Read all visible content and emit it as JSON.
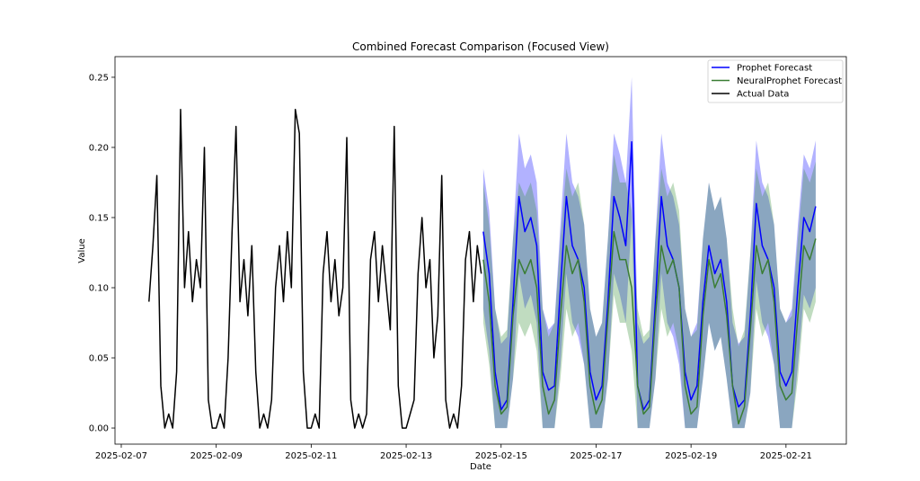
{
  "chart_data": {
    "type": "line",
    "title": "Combined Forecast Comparison (Focused View)",
    "xlabel": "Date",
    "ylabel": "Value",
    "xlim": [
      "2025-02-06 20:50",
      "2025-02-22 06:30"
    ],
    "ylim": [
      -0.0115,
      0.2647
    ],
    "grid": false,
    "legend_placement": "top-right",
    "x_ticks": [
      "2025-02-07",
      "2025-02-09",
      "2025-02-11",
      "2025-02-13",
      "2025-02-15",
      "2025-02-17",
      "2025-02-19",
      "2025-02-21"
    ],
    "y_ticks": [
      0.0,
      0.05,
      0.1,
      0.15,
      0.2,
      0.25
    ],
    "y_tick_labels": [
      "0.00",
      "0.05",
      "0.10",
      "0.15",
      "0.20",
      "0.25"
    ],
    "legend": [
      {
        "label": "Prophet Forecast",
        "color": "#0000ff"
      },
      {
        "label": "NeuralProphet Forecast",
        "color": "#3a7d34"
      },
      {
        "label": "Actual Data",
        "color": "#000000"
      }
    ],
    "actual": {
      "name": "Actual Data",
      "color": "#000000",
      "x": [
        "2025-02-07 14:00",
        "2025-02-07 16:00",
        "2025-02-07 18:00",
        "2025-02-07 20:00",
        "2025-02-07 22:00",
        "2025-02-08 00:00",
        "2025-02-08 02:00",
        "2025-02-08 04:00",
        "2025-02-08 06:00",
        "2025-02-08 08:00",
        "2025-02-08 10:00",
        "2025-02-08 12:00",
        "2025-02-08 14:00",
        "2025-02-08 16:00",
        "2025-02-08 18:00",
        "2025-02-08 20:00",
        "2025-02-08 22:00",
        "2025-02-09 00:00",
        "2025-02-09 02:00",
        "2025-02-09 04:00",
        "2025-02-09 06:00",
        "2025-02-09 08:00",
        "2025-02-09 10:00",
        "2025-02-09 12:00",
        "2025-02-09 14:00",
        "2025-02-09 16:00",
        "2025-02-09 18:00",
        "2025-02-09 20:00",
        "2025-02-09 22:00",
        "2025-02-10 00:00",
        "2025-02-10 02:00",
        "2025-02-10 04:00",
        "2025-02-10 06:00",
        "2025-02-10 08:00",
        "2025-02-10 10:00",
        "2025-02-10 12:00",
        "2025-02-10 14:00",
        "2025-02-10 16:00",
        "2025-02-10 18:00",
        "2025-02-10 20:00",
        "2025-02-10 22:00",
        "2025-02-11 00:00",
        "2025-02-11 02:00",
        "2025-02-11 04:00",
        "2025-02-11 06:00",
        "2025-02-11 08:00",
        "2025-02-11 10:00",
        "2025-02-11 12:00",
        "2025-02-11 14:00",
        "2025-02-11 16:00",
        "2025-02-11 18:00",
        "2025-02-11 20:00",
        "2025-02-11 22:00",
        "2025-02-12 00:00",
        "2025-02-12 02:00",
        "2025-02-12 04:00",
        "2025-02-12 06:00",
        "2025-02-12 08:00",
        "2025-02-12 10:00",
        "2025-02-12 12:00",
        "2025-02-12 14:00",
        "2025-02-12 16:00",
        "2025-02-12 18:00",
        "2025-02-12 20:00",
        "2025-02-12 22:00",
        "2025-02-13 00:00",
        "2025-02-13 02:00",
        "2025-02-13 04:00",
        "2025-02-13 06:00",
        "2025-02-13 08:00",
        "2025-02-13 10:00",
        "2025-02-13 12:00",
        "2025-02-13 14:00",
        "2025-02-13 16:00",
        "2025-02-13 18:00",
        "2025-02-13 20:00",
        "2025-02-13 22:00",
        "2025-02-14 00:00",
        "2025-02-14 02:00",
        "2025-02-14 04:00",
        "2025-02-14 06:00",
        "2025-02-14 08:00",
        "2025-02-14 10:00",
        "2025-02-14 12:00",
        "2025-02-14 14:00"
      ],
      "y": [
        0.09,
        0.13,
        0.18,
        0.03,
        0.0,
        0.01,
        0.0,
        0.04,
        0.227,
        0.1,
        0.14,
        0.09,
        0.12,
        0.1,
        0.2,
        0.02,
        0.0,
        0.0,
        0.01,
        0.0,
        0.05,
        0.14,
        0.215,
        0.09,
        0.12,
        0.08,
        0.13,
        0.04,
        0.0,
        0.01,
        0.0,
        0.02,
        0.1,
        0.13,
        0.09,
        0.14,
        0.1,
        0.227,
        0.21,
        0.04,
        0.0,
        0.0,
        0.01,
        0.0,
        0.11,
        0.14,
        0.09,
        0.12,
        0.08,
        0.1,
        0.207,
        0.02,
        0.0,
        0.01,
        0.0,
        0.01,
        0.12,
        0.14,
        0.09,
        0.13,
        0.1,
        0.07,
        0.215,
        0.03,
        0.0,
        0.0,
        0.01,
        0.02,
        0.11,
        0.15,
        0.1,
        0.12,
        0.05,
        0.08,
        0.18,
        0.02,
        0.0,
        0.01,
        0.0,
        0.03,
        0.12,
        0.14,
        0.09,
        0.13,
        0.11
      ]
    },
    "forecast_x": [
      "2025-02-14 15:00",
      "2025-02-14 18:00",
      "2025-02-14 21:00",
      "2025-02-15 00:00",
      "2025-02-15 03:00",
      "2025-02-15 06:00",
      "2025-02-15 09:00",
      "2025-02-15 12:00",
      "2025-02-15 15:00",
      "2025-02-15 18:00",
      "2025-02-15 21:00",
      "2025-02-16 00:00",
      "2025-02-16 03:00",
      "2025-02-16 06:00",
      "2025-02-16 09:00",
      "2025-02-16 12:00",
      "2025-02-16 15:00",
      "2025-02-16 18:00",
      "2025-02-16 21:00",
      "2025-02-17 00:00",
      "2025-02-17 03:00",
      "2025-02-17 06:00",
      "2025-02-17 09:00",
      "2025-02-17 12:00",
      "2025-02-17 15:00",
      "2025-02-17 18:00",
      "2025-02-17 21:00",
      "2025-02-18 00:00",
      "2025-02-18 03:00",
      "2025-02-18 06:00",
      "2025-02-18 09:00",
      "2025-02-18 12:00",
      "2025-02-18 15:00",
      "2025-02-18 18:00",
      "2025-02-18 21:00",
      "2025-02-19 00:00",
      "2025-02-19 03:00",
      "2025-02-19 06:00",
      "2025-02-19 09:00",
      "2025-02-19 12:00",
      "2025-02-19 15:00",
      "2025-02-19 18:00",
      "2025-02-19 21:00",
      "2025-02-20 00:00",
      "2025-02-20 03:00",
      "2025-02-20 06:00",
      "2025-02-20 09:00",
      "2025-02-20 12:00",
      "2025-02-20 15:00",
      "2025-02-20 18:00",
      "2025-02-20 21:00",
      "2025-02-21 00:00",
      "2025-02-21 03:00",
      "2025-02-21 06:00",
      "2025-02-21 09:00",
      "2025-02-21 12:00",
      "2025-02-21 15:00"
    ],
    "prophet": {
      "name": "Prophet Forecast",
      "color": "#0000ff",
      "y": [
        0.14,
        0.11,
        0.04,
        0.013,
        0.02,
        0.09,
        0.165,
        0.14,
        0.15,
        0.13,
        0.04,
        0.027,
        0.03,
        0.1,
        0.165,
        0.13,
        0.12,
        0.1,
        0.04,
        0.02,
        0.03,
        0.09,
        0.165,
        0.15,
        0.13,
        0.204,
        0.03,
        0.013,
        0.02,
        0.09,
        0.165,
        0.13,
        0.12,
        0.1,
        0.04,
        0.02,
        0.03,
        0.09,
        0.13,
        0.11,
        0.12,
        0.09,
        0.03,
        0.015,
        0.02,
        0.08,
        0.16,
        0.13,
        0.12,
        0.1,
        0.04,
        0.03,
        0.04,
        0.1,
        0.15,
        0.14,
        0.158
      ],
      "upper": [
        0.185,
        0.155,
        0.085,
        0.06,
        0.065,
        0.135,
        0.21,
        0.185,
        0.195,
        0.175,
        0.085,
        0.07,
        0.075,
        0.145,
        0.21,
        0.175,
        0.165,
        0.145,
        0.085,
        0.065,
        0.075,
        0.135,
        0.21,
        0.195,
        0.175,
        0.25,
        0.075,
        0.06,
        0.065,
        0.135,
        0.21,
        0.175,
        0.165,
        0.145,
        0.085,
        0.065,
        0.075,
        0.135,
        0.175,
        0.155,
        0.165,
        0.135,
        0.075,
        0.06,
        0.065,
        0.125,
        0.205,
        0.175,
        0.165,
        0.145,
        0.085,
        0.075,
        0.085,
        0.145,
        0.195,
        0.185,
        0.205
      ],
      "lower": [
        0.085,
        0.055,
        0,
        0,
        0,
        0.035,
        0.11,
        0.085,
        0.095,
        0.075,
        0,
        0,
        0,
        0.045,
        0.11,
        0.075,
        0.065,
        0.045,
        0,
        0,
        0,
        0.035,
        0.11,
        0.095,
        0.075,
        0.15,
        0,
        0,
        0,
        0.035,
        0.11,
        0.075,
        0.065,
        0.045,
        0,
        0,
        0,
        0.035,
        0.075,
        0.055,
        0.065,
        0.035,
        0,
        0,
        0,
        0.025,
        0.105,
        0.075,
        0.065,
        0.045,
        0,
        0,
        0,
        0.045,
        0.095,
        0.085,
        0.1
      ]
    },
    "neuralprophet": {
      "name": "NeuralProphet Forecast",
      "color": "#3a7d34",
      "y": [
        0.12,
        0.09,
        0.03,
        0.01,
        0.015,
        0.08,
        0.12,
        0.11,
        0.12,
        0.1,
        0.03,
        0.01,
        0.02,
        0.08,
        0.13,
        0.11,
        0.12,
        0.09,
        0.03,
        0.01,
        0.02,
        0.08,
        0.14,
        0.12,
        0.12,
        0.1,
        0.03,
        0.01,
        0.015,
        0.08,
        0.13,
        0.11,
        0.12,
        0.1,
        0.03,
        0.01,
        0.015,
        0.08,
        0.12,
        0.1,
        0.11,
        0.08,
        0.03,
        0.003,
        0.015,
        0.07,
        0.13,
        0.11,
        0.12,
        0.09,
        0.03,
        0.02,
        0.025,
        0.08,
        0.13,
        0.12,
        0.135
      ],
      "upper": [
        0.175,
        0.145,
        0.085,
        0.065,
        0.07,
        0.135,
        0.175,
        0.165,
        0.175,
        0.155,
        0.085,
        0.065,
        0.075,
        0.135,
        0.185,
        0.165,
        0.175,
        0.145,
        0.085,
        0.065,
        0.075,
        0.135,
        0.195,
        0.175,
        0.175,
        0.155,
        0.085,
        0.065,
        0.07,
        0.135,
        0.185,
        0.165,
        0.175,
        0.155,
        0.085,
        0.065,
        0.07,
        0.135,
        0.175,
        0.155,
        0.165,
        0.135,
        0.085,
        0.058,
        0.07,
        0.125,
        0.185,
        0.165,
        0.175,
        0.145,
        0.085,
        0.075,
        0.08,
        0.135,
        0.185,
        0.175,
        0.19
      ],
      "lower": [
        0.075,
        0.045,
        0,
        0,
        0,
        0.035,
        0.075,
        0.065,
        0.075,
        0.055,
        0,
        0,
        0,
        0.035,
        0.085,
        0.065,
        0.075,
        0.045,
        0,
        0,
        0,
        0.035,
        0.095,
        0.075,
        0.075,
        0.055,
        0,
        0,
        0,
        0.035,
        0.085,
        0.065,
        0.075,
        0.055,
        0,
        0,
        0,
        0.035,
        0.075,
        0.055,
        0.065,
        0.035,
        0,
        0,
        0,
        0.025,
        0.085,
        0.065,
        0.075,
        0.045,
        0,
        0,
        0,
        0.035,
        0.085,
        0.075,
        0.09
      ]
    }
  }
}
